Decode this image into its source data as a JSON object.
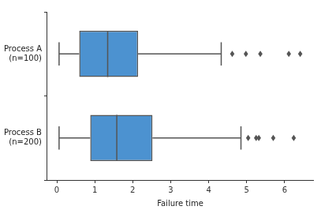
{
  "chart_data": {
    "type": "box",
    "orientation": "horizontal",
    "categories": [
      "Process A\n(n=100)",
      "Process B\n(n=200)"
    ],
    "boxes": [
      {
        "whislo": 0.06,
        "q1": 0.59,
        "med": 1.34,
        "q3": 2.14,
        "whishi": 4.33,
        "fliers": [
          4.62,
          4.98,
          5.36,
          6.11,
          6.41
        ]
      },
      {
        "whislo": 0.06,
        "q1": 0.88,
        "med": 1.58,
        "q3": 2.52,
        "whishi": 4.85,
        "fliers": [
          5.04,
          5.25,
          5.32,
          5.7,
          6.24
        ]
      }
    ],
    "color": "#4c92d0",
    "marker": "diamond",
    "x_label": "Failure time",
    "xlim": [
      -0.25,
      6.75
    ],
    "xticks": [
      0,
      1,
      2,
      3,
      4,
      5,
      6
    ],
    "grid": false
  }
}
